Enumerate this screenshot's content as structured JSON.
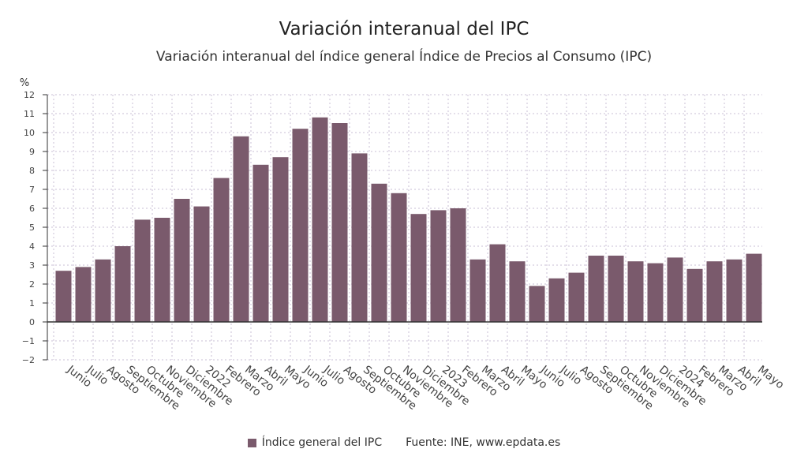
{
  "title": "Variación interanual del IPC",
  "subtitle": "Variación interanual del índice general Índice de Precios al Consumo (IPC)",
  "source": "Fuente: INE, www.epdata.es",
  "colors": {
    "bar": "#7a5a6c",
    "grid": "#c8bfd6",
    "axis": "#333333",
    "text": "#444444"
  },
  "chart_data": {
    "type": "bar",
    "title": "Variación interanual del IPC",
    "subtitle": "Variación interanual del índice general Índice de Precios al Consumo (IPC)",
    "xlabel": "",
    "ylabel": "%",
    "ylim": [
      -2,
      12
    ],
    "yticks": [
      -2,
      -1,
      0,
      1,
      2,
      3,
      4,
      5,
      6,
      7,
      8,
      9,
      10,
      11,
      12
    ],
    "grid": true,
    "legend": "bottom",
    "categories": [
      "Junio",
      "Julio",
      "Agosto",
      "Septiembre",
      "Octubre",
      "Noviembre",
      "Diciembre",
      "2022",
      "Febrero",
      "Marzo",
      "Abril",
      "Mayo",
      "Junio",
      "Julio",
      "Agosto",
      "Septiembre",
      "Octubre",
      "Noviembre",
      "Diciembre",
      "2023",
      "Febrero",
      "Marzo",
      "Abril",
      "Mayo",
      "Junio",
      "Julio",
      "Agosto",
      "Septiembre",
      "Octubre",
      "Noviembre",
      "Diciembre",
      "2024",
      "Febrero",
      "Marzo",
      "Abril",
      "Mayo"
    ],
    "series": [
      {
        "name": "Índice general del IPC",
        "values": [
          2.7,
          2.9,
          3.3,
          4.0,
          5.4,
          5.5,
          6.5,
          6.1,
          7.6,
          9.8,
          8.3,
          8.7,
          10.2,
          10.8,
          10.5,
          8.9,
          7.3,
          6.8,
          5.7,
          5.9,
          6.0,
          3.3,
          4.1,
          3.2,
          1.9,
          2.3,
          2.6,
          3.5,
          3.5,
          3.2,
          3.1,
          3.4,
          2.8,
          3.2,
          3.3,
          3.6
        ]
      }
    ]
  }
}
